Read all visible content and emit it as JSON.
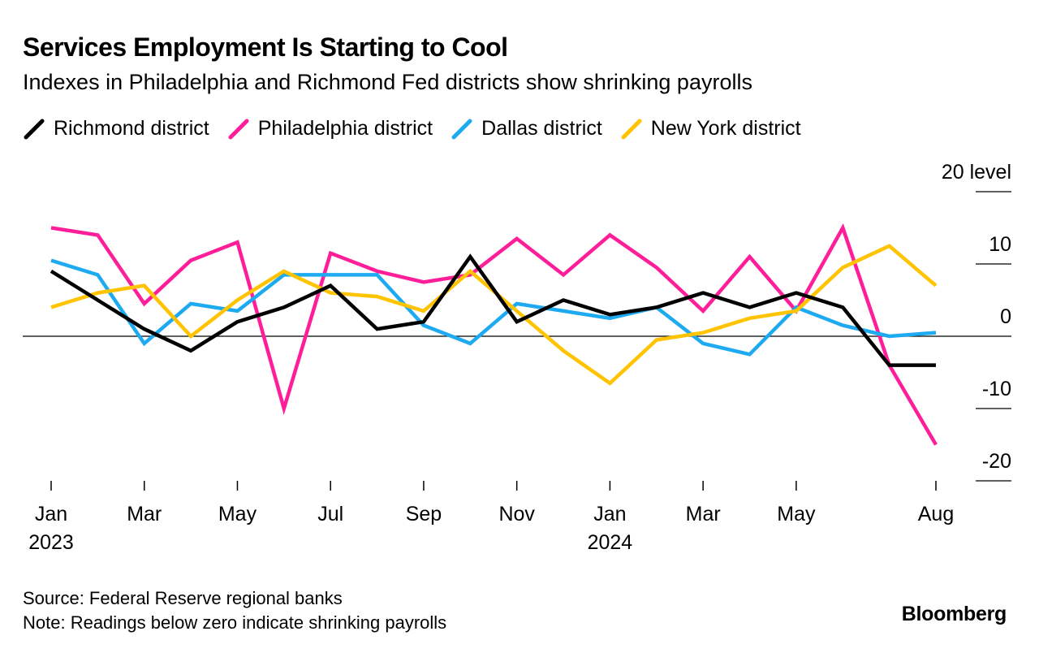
{
  "header": {
    "title": "Services Employment Is Starting to Cool",
    "subtitle": "Indexes in Philadelphia and Richmond Fed districts show shrinking payrolls"
  },
  "footer": {
    "source": "Source: Federal Reserve regional banks",
    "note": "Note: Readings below zero indicate shrinking payrolls",
    "brand": "Bloomberg"
  },
  "chart_data": {
    "type": "line",
    "title": "Services Employment Is Starting to Cool",
    "subtitle": "Indexes in Philadelphia and Richmond Fed districts show shrinking payrolls",
    "x": [
      "2023-01",
      "2023-02",
      "2023-03",
      "2023-04",
      "2023-05",
      "2023-06",
      "2023-07",
      "2023-08",
      "2023-09",
      "2023-10",
      "2023-11",
      "2023-12",
      "2024-01",
      "2024-02",
      "2024-03",
      "2024-04",
      "2024-05",
      "2024-06",
      "2024-07",
      "2024-08"
    ],
    "x_tick_labels": [
      {
        "index": 0,
        "line1": "Jan",
        "line2": "2023"
      },
      {
        "index": 2,
        "line1": "Mar",
        "line2": ""
      },
      {
        "index": 4,
        "line1": "May",
        "line2": ""
      },
      {
        "index": 6,
        "line1": "Jul",
        "line2": ""
      },
      {
        "index": 8,
        "line1": "Sep",
        "line2": ""
      },
      {
        "index": 10,
        "line1": "Nov",
        "line2": ""
      },
      {
        "index": 12,
        "line1": "Jan",
        "line2": "2024"
      },
      {
        "index": 14,
        "line1": "Mar",
        "line2": ""
      },
      {
        "index": 16,
        "line1": "May",
        "line2": ""
      },
      {
        "index": 19,
        "line1": "Aug",
        "line2": ""
      }
    ],
    "y_ticks": [
      {
        "value": 20,
        "label": "20 level"
      },
      {
        "value": 10,
        "label": "10"
      },
      {
        "value": 0,
        "label": "0"
      },
      {
        "value": -10,
        "label": "-10"
      },
      {
        "value": -20,
        "label": "-20"
      }
    ],
    "ylim": [
      -20,
      20
    ],
    "series": [
      {
        "name": "Richmond district",
        "color": "#000000",
        "values": [
          9,
          5,
          1,
          -2,
          2,
          4,
          7,
          1,
          2,
          11,
          2,
          5,
          3,
          4,
          6,
          4,
          6,
          4,
          -4,
          -4
        ]
      },
      {
        "name": "Philadelphia district",
        "color": "#ff1e9a",
        "values": [
          15,
          14,
          4.5,
          10.5,
          13,
          -10,
          11.5,
          9,
          7.5,
          8.5,
          13.5,
          8.5,
          14,
          9.5,
          3.5,
          11,
          3.5,
          15,
          -4,
          -15
        ]
      },
      {
        "name": "Dallas district",
        "color": "#1eaaf0",
        "values": [
          10.5,
          8.5,
          -1,
          4.5,
          3.5,
          8.5,
          8.5,
          8.5,
          1.5,
          -1,
          4.5,
          3.5,
          2.5,
          4,
          -1,
          -2.5,
          4,
          1.5,
          0,
          0.5
        ]
      },
      {
        "name": "New York district",
        "color": "#ffc300",
        "values": [
          4,
          6,
          7,
          0,
          5,
          9,
          6,
          5.5,
          3.5,
          9,
          3.5,
          -2,
          -6.5,
          -0.5,
          0.5,
          2.5,
          3.5,
          9.5,
          12.5,
          7
        ]
      }
    ]
  }
}
